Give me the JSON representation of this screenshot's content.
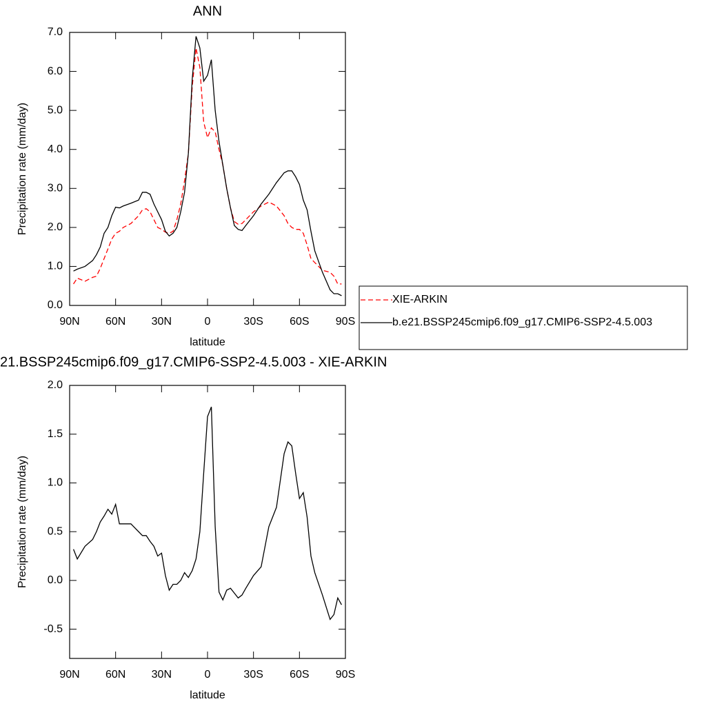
{
  "chart_data": [
    {
      "type": "line",
      "title": "ANN",
      "xlabel": "latitude",
      "ylabel": "Precipitation rate (mm/day)",
      "x": [
        87.5,
        85,
        80,
        75,
        72.5,
        70,
        67.5,
        65,
        62.5,
        60,
        57.5,
        55,
        50,
        45,
        42.5,
        40,
        37.5,
        35,
        32.5,
        30,
        27.5,
        25,
        22.5,
        20,
        17.5,
        15,
        12.5,
        10,
        7.5,
        5,
        2.5,
        0,
        -2.5,
        -5,
        -7.5,
        -10,
        -12.5,
        -15,
        -17.5,
        -20,
        -22.5,
        -25,
        -30,
        -35,
        -40,
        -45,
        -50,
        -52.5,
        -55,
        -57.5,
        -60,
        -62.5,
        -65,
        -67.5,
        -70,
        -75,
        -80,
        -82.5,
        -85,
        -87.5
      ],
      "series": [
        {
          "name": "XIE-ARKIN",
          "color": "#ff0000",
          "style": "dashed",
          "values": [
            0.55,
            0.7,
            0.62,
            0.72,
            0.75,
            0.95,
            1.2,
            1.45,
            1.7,
            1.85,
            1.9,
            2.0,
            2.1,
            2.3,
            2.45,
            2.48,
            2.4,
            2.2,
            2.0,
            1.95,
            1.88,
            1.85,
            1.9,
            2.2,
            2.6,
            3.2,
            3.9,
            5.6,
            6.6,
            6.1,
            4.7,
            4.3,
            4.55,
            4.45,
            4.0,
            3.6,
            3.0,
            2.5,
            2.15,
            2.08,
            2.1,
            2.2,
            2.4,
            2.55,
            2.65,
            2.55,
            2.3,
            2.1,
            2.0,
            1.95,
            1.95,
            1.85,
            1.55,
            1.2,
            1.1,
            0.9,
            0.85,
            0.75,
            0.55,
            0.55
          ]
        },
        {
          "name": "b.e21.BSSP245cmip6.f09_g17.CMIP6-SSP2-4.5.003",
          "color": "#000000",
          "style": "solid",
          "values": [
            0.88,
            0.93,
            1.0,
            1.15,
            1.3,
            1.5,
            1.85,
            2.0,
            2.3,
            2.52,
            2.5,
            2.55,
            2.62,
            2.7,
            2.9,
            2.9,
            2.85,
            2.6,
            2.4,
            2.2,
            1.9,
            1.78,
            1.85,
            2.0,
            2.4,
            2.9,
            3.9,
            5.8,
            6.9,
            6.6,
            5.75,
            5.9,
            6.3,
            5.0,
            4.2,
            3.6,
            3.0,
            2.5,
            2.05,
            1.95,
            1.92,
            2.05,
            2.3,
            2.6,
            2.85,
            3.15,
            3.4,
            3.45,
            3.45,
            3.3,
            3.1,
            2.7,
            2.45,
            1.9,
            1.4,
            0.85,
            0.4,
            0.3,
            0.3,
            0.25
          ]
        }
      ],
      "xlim": [
        90,
        -90
      ],
      "xticks": [
        {
          "value": 90,
          "label": "90N"
        },
        {
          "value": 60,
          "label": "60N"
        },
        {
          "value": 30,
          "label": "30N"
        },
        0,
        {
          "value": -30,
          "label": "30S"
        },
        {
          "value": -60,
          "label": "60S"
        },
        {
          "value": -90,
          "label": "90S"
        }
      ],
      "ylim": [
        0,
        7
      ],
      "yticks": [
        {
          "value": 0,
          "label": "0.0"
        },
        {
          "value": 1,
          "label": "1.0"
        },
        {
          "value": 2,
          "label": "2.0"
        },
        {
          "value": 3,
          "label": "3.0"
        },
        {
          "value": 4,
          "label": "4.0"
        },
        {
          "value": 5,
          "label": "5.0"
        },
        {
          "value": 6,
          "label": "6.0"
        },
        {
          "value": 7,
          "label": "7.0"
        }
      ],
      "legend": "right"
    },
    {
      "type": "line",
      "title": "21.BSSP245cmip6.f09_g17.CMIP6-SSP2-4.5.003 - XIE-ARKIN",
      "xlabel": "latitude",
      "ylabel": "Precipitation rate (mm/day)",
      "x": [
        87.5,
        85,
        80,
        75,
        72.5,
        70,
        67.5,
        65,
        62.5,
        60,
        57.5,
        55,
        50,
        45,
        42.5,
        40,
        37.5,
        35,
        32.5,
        30,
        27.5,
        25,
        22.5,
        20,
        17.5,
        15,
        12.5,
        10,
        7.5,
        5,
        2.5,
        0,
        -2.5,
        -5,
        -7.5,
        -10,
        -12.5,
        -15,
        -17.5,
        -20,
        -22.5,
        -25,
        -30,
        -35,
        -40,
        -45,
        -50,
        -52.5,
        -55,
        -57.5,
        -60,
        -62.5,
        -65,
        -67.5,
        -70,
        -75,
        -80,
        -82.5,
        -85,
        -87.5
      ],
      "series": [
        {
          "color": "#000000",
          "style": "solid",
          "values": [
            0.32,
            0.22,
            0.35,
            0.42,
            0.5,
            0.6,
            0.66,
            0.73,
            0.68,
            0.78,
            0.58,
            0.58,
            0.58,
            0.5,
            0.46,
            0.46,
            0.4,
            0.35,
            0.25,
            0.28,
            0.05,
            -0.1,
            -0.04,
            -0.04,
            0.0,
            0.08,
            0.03,
            0.1,
            0.22,
            0.5,
            1.1,
            1.68,
            1.78,
            0.55,
            -0.12,
            -0.2,
            -0.1,
            -0.08,
            -0.13,
            -0.18,
            -0.15,
            -0.08,
            0.05,
            0.14,
            0.55,
            0.75,
            1.3,
            1.42,
            1.38,
            1.1,
            0.84,
            0.9,
            0.65,
            0.25,
            0.08,
            -0.15,
            -0.4,
            -0.35,
            -0.18,
            -0.25
          ]
        }
      ],
      "xlim": [
        90,
        -90
      ],
      "xticks": [
        {
          "value": 90,
          "label": "90N"
        },
        {
          "value": 60,
          "label": "60N"
        },
        {
          "value": 30,
          "label": "30N"
        },
        0,
        {
          "value": -30,
          "label": "30S"
        },
        {
          "value": -60,
          "label": "60S"
        },
        {
          "value": -90,
          "label": "90S"
        }
      ],
      "ylim": [
        -0.8,
        2.0
      ],
      "yticks": [
        {
          "value": -0.5,
          "label": "-0.5"
        },
        {
          "value": 0,
          "label": "0.0"
        },
        {
          "value": 0.5,
          "label": "0.5"
        },
        {
          "value": 1,
          "label": "1.0"
        },
        {
          "value": 1.5,
          "label": "1.5"
        },
        {
          "value": 2,
          "label": "2.0"
        }
      ]
    }
  ]
}
